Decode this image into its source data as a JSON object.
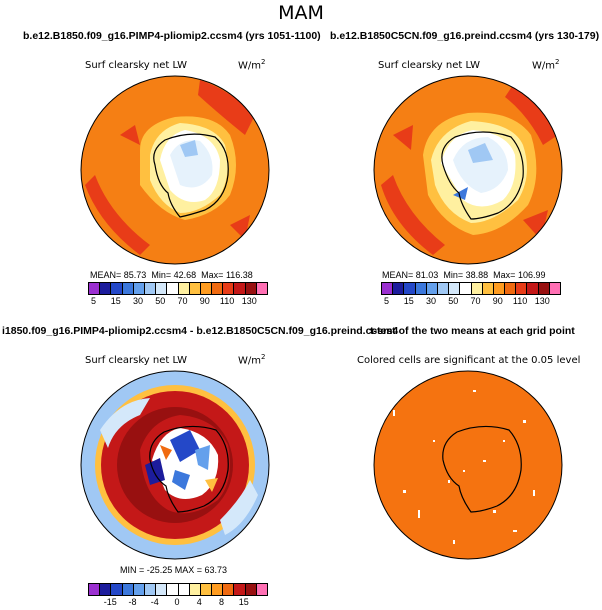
{
  "season": "MAM",
  "panels": [
    {
      "title": "b.e12.B1850.f09_g16.PIMP4-pliomip2.ccsm4 (yrs 1051-1100)",
      "variable": "Surf clearsky net LW",
      "units": "W/m",
      "units_exp": "2",
      "stats": {
        "mean_label": "MEAN=",
        "mean": "85.73",
        "min_label": "Min=",
        "min": "42.68",
        "max_label": "Max=",
        "max": "116.38"
      }
    },
    {
      "title": "b.e12.B1850C5CN.f09_g16.preind.ccsm4 (yrs 130-179)",
      "variable": "Surf clearsky net LW",
      "units": "W/m",
      "units_exp": "2",
      "stats": {
        "mean_label": "MEAN=",
        "mean": "81.03",
        "min_label": "Min=",
        "min": "38.88",
        "max_label": "Max=",
        "max": "106.99"
      }
    },
    {
      "title": "i1850.f09_g16.PIMP4-pliomip2.ccsm4 - b.e12.B1850C5CN.f09_g16.preind.ccsm4",
      "variable": "Surf clearsky net LW",
      "units": "W/m",
      "units_exp": "2",
      "stats_text": "MIN = -25.25  MAX = 63.73"
    },
    {
      "title": "t-test of the two means at each grid point",
      "variable": "Colored cells are significant at the 0.05 level"
    }
  ],
  "chart_data": [
    {
      "type": "heatmap",
      "name": "PIMP4 Surf clearsky net LW (polar map)",
      "mean": 85.73,
      "min": 42.68,
      "max": 116.38,
      "colorbar_levels": [
        "5",
        "15",
        "30",
        "50",
        "70",
        "90",
        "110",
        "130"
      ]
    },
    {
      "type": "heatmap",
      "name": "preind Surf clearsky net LW (polar map)",
      "mean": 81.03,
      "min": 38.88,
      "max": 106.99,
      "colorbar_levels": [
        "5",
        "15",
        "30",
        "50",
        "70",
        "90",
        "110",
        "130"
      ]
    },
    {
      "type": "heatmap",
      "name": "Difference",
      "min": -25.25,
      "max": 63.73,
      "colorbar_levels": [
        "-15",
        "-8",
        "-4",
        "0",
        "4",
        "8",
        "15"
      ]
    },
    {
      "type": "heatmap",
      "name": "t-test significance",
      "significance_level": 0.05
    }
  ],
  "colors": {
    "abs_scale": [
      "#9b30d0",
      "#1c1c9c",
      "#2448c8",
      "#3c78dc",
      "#64a0ec",
      "#a0c8f4",
      "#d4e8fa",
      "#ffffff",
      "#fff0a0",
      "#ffc040",
      "#ff9c20",
      "#f06a10",
      "#e83c18",
      "#c41818",
      "#981010",
      "#ff70b4"
    ],
    "diff_scale": [
      "#9b30d0",
      "#1c1c9c",
      "#2448c8",
      "#3c78dc",
      "#64a0ec",
      "#a0c8f4",
      "#d4e8fa",
      "#ffffff",
      "#ffffff",
      "#fff0a0",
      "#ffc040",
      "#ff9c20",
      "#f06a10",
      "#c41818",
      "#981010",
      "#ff70b4"
    ],
    "ocean_warm": "#f57f14",
    "ice_light": "#e6f2fc",
    "signif": "#f57310"
  }
}
